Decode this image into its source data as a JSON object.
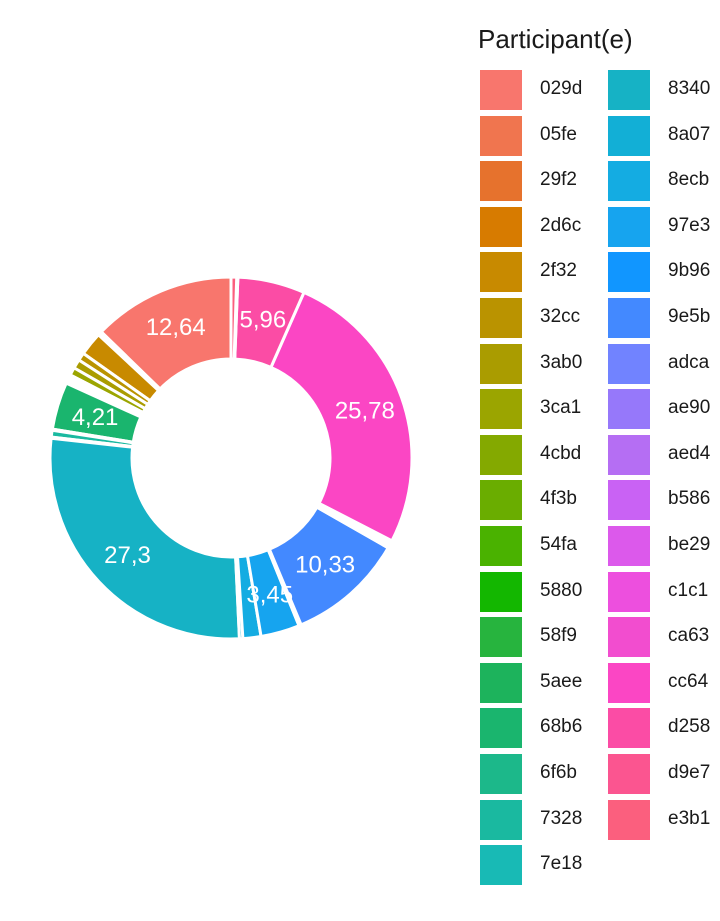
{
  "chart_data": {
    "type": "pie",
    "donut": true,
    "legend_title": "Participant(e)",
    "legend_position": "right",
    "slices": [
      {
        "name": "029d",
        "value": 12.64,
        "label": "12,64",
        "color": "#F8766D"
      },
      {
        "name": "05fe",
        "value": 0.1,
        "label": "",
        "color": "#F0754F"
      },
      {
        "name": "29f2",
        "value": 0.15,
        "label": "",
        "color": "#E6722D"
      },
      {
        "name": "2d6c",
        "value": 0.1,
        "label": "",
        "color": "#D77B00"
      },
      {
        "name": "2f32",
        "value": 2.1,
        "label": "",
        "color": "#C88A00"
      },
      {
        "name": "32cc",
        "value": 0.7,
        "label": "",
        "color": "#BA9300"
      },
      {
        "name": "3ab0",
        "value": 0.8,
        "label": "",
        "color": "#AA9C00"
      },
      {
        "name": "3ca1",
        "value": 0.7,
        "label": "",
        "color": "#9BA500"
      },
      {
        "name": "4cbd",
        "value": 0.2,
        "label": "",
        "color": "#84A900"
      },
      {
        "name": "4f3b",
        "value": 0.1,
        "label": "",
        "color": "#6AAD00"
      },
      {
        "name": "54fa",
        "value": 0.1,
        "label": "",
        "color": "#4AB200"
      },
      {
        "name": "5880",
        "value": 0.1,
        "label": "",
        "color": "#13B700"
      },
      {
        "name": "58f9",
        "value": 0.1,
        "label": "",
        "color": "#27B43E"
      },
      {
        "name": "5aee",
        "value": 0.2,
        "label": "",
        "color": "#1DB35C"
      },
      {
        "name": "68b6",
        "value": 4.21,
        "label": "4,21",
        "color": "#1AB56E"
      },
      {
        "name": "6f6b",
        "value": 0.1,
        "label": "",
        "color": "#1CB88A"
      },
      {
        "name": "7328",
        "value": 0.6,
        "label": "",
        "color": "#1AB9A0"
      },
      {
        "name": "7e18",
        "value": 0.1,
        "label": "",
        "color": "#18BAB5"
      },
      {
        "name": "8340",
        "value": 27.3,
        "label": "27,3",
        "color": "#16B2C5"
      },
      {
        "name": "8a07",
        "value": 0.3,
        "label": "",
        "color": "#12AFD6"
      },
      {
        "name": "8ecb",
        "value": 1.6,
        "label": "",
        "color": "#14ACE2"
      },
      {
        "name": "97e3",
        "value": 3.45,
        "label": "3,45",
        "color": "#16A4EF"
      },
      {
        "name": "9b96",
        "value": 0.2,
        "label": "",
        "color": "#1196FF"
      },
      {
        "name": "9e5b",
        "value": 10.33,
        "label": "10,33",
        "color": "#4389FF"
      },
      {
        "name": "adca",
        "value": 0.1,
        "label": "",
        "color": "#7183FF"
      },
      {
        "name": "ae90",
        "value": 0.1,
        "label": "",
        "color": "#9678FA"
      },
      {
        "name": "aed4",
        "value": 0.1,
        "label": "",
        "color": "#B56EF3"
      },
      {
        "name": "b586",
        "value": 0.1,
        "label": "",
        "color": "#C962F4"
      },
      {
        "name": "be29",
        "value": 0.1,
        "label": "",
        "color": "#DC59EB"
      },
      {
        "name": "c1c1",
        "value": 0.1,
        "label": "",
        "color": "#ED4FDE"
      },
      {
        "name": "ca63",
        "value": 0.1,
        "label": "",
        "color": "#F24DCF"
      },
      {
        "name": "cc64",
        "value": 25.78,
        "label": "25,78",
        "color": "#FB46C4"
      },
      {
        "name": "d258",
        "value": 5.96,
        "label": "5,96",
        "color": "#FB4CA5"
      },
      {
        "name": "d9e7",
        "value": 0.1,
        "label": "",
        "color": "#FB5590"
      },
      {
        "name": "e3b1",
        "value": 0.5,
        "label": "",
        "color": "#FB5F7E"
      }
    ]
  }
}
